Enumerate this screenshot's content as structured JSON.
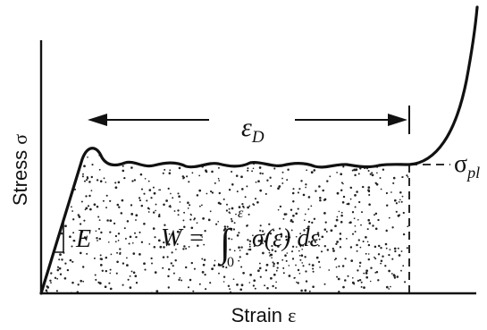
{
  "labels": {
    "y_axis_word": "Stress",
    "y_axis_symbol": "σ",
    "x_axis_word": "Strain",
    "x_axis_symbol": "ε",
    "modulus": "E",
    "densification_base": "ε",
    "densification_sub": "D",
    "plateau_base": "σ",
    "plateau_sub": "pl",
    "work_lhs": "W =",
    "work_integral_sign": "∫",
    "work_upper": "ε",
    "work_lower": "0",
    "work_integrand": "σ(ε) dε"
  },
  "colors": {
    "ink": "#111111",
    "background": "#ffffff"
  }
}
